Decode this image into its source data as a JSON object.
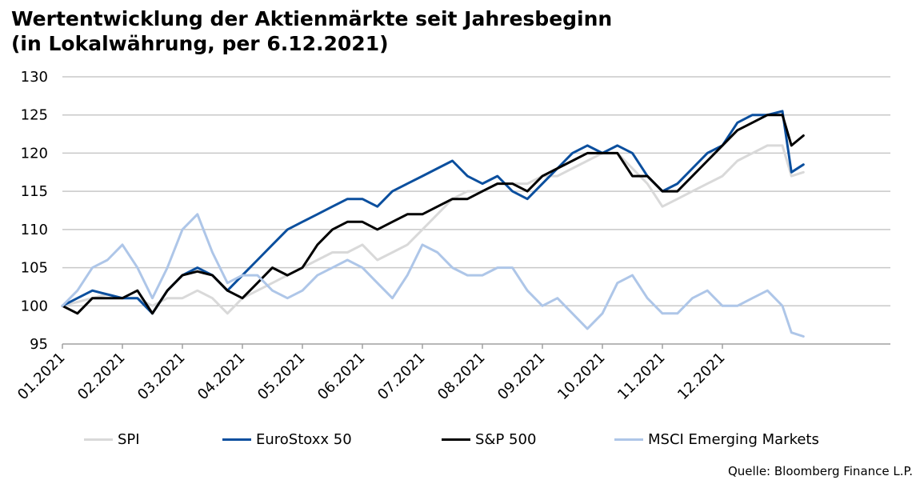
{
  "title_line1": "Wertentwicklung der Aktienmärkte seit Jahresbeginn",
  "title_line2": "(in Lokalwährung, per 6.12.2021)",
  "source": "Quelle: Bloomberg Finance L.P.",
  "chart_data": {
    "type": "line",
    "title": "Wertentwicklung der Aktienmärkte seit Jahresbeginn (in Lokalwährung, per 6.12.2021)",
    "xlabel": "",
    "ylabel": "",
    "ylim": [
      95,
      130
    ],
    "yticks": [
      95,
      100,
      105,
      110,
      115,
      120,
      125,
      130
    ],
    "xlim": [
      0,
      13.8
    ],
    "xtick_labels": [
      "01.2021",
      "02.2021",
      "03.2021",
      "04.2021",
      "05.2021",
      "06.2021",
      "07.2021",
      "08.2021",
      "09.2021",
      "10.2021",
      "11.2021",
      "12.2021"
    ],
    "grid": "horizontal",
    "legend_position": "bottom",
    "series": [
      {
        "name": "SPI",
        "color": "#d9d9d9",
        "x": [
          0,
          0.25,
          0.5,
          0.75,
          1,
          1.25,
          1.5,
          1.75,
          2,
          2.25,
          2.5,
          2.75,
          3,
          3.25,
          3.5,
          3.75,
          4,
          4.25,
          4.5,
          4.75,
          5,
          5.25,
          5.5,
          5.75,
          6,
          6.25,
          6.5,
          6.75,
          7,
          7.25,
          7.5,
          7.75,
          8,
          8.25,
          8.5,
          8.75,
          9,
          9.25,
          9.5,
          9.75,
          10,
          10.25,
          10.5,
          10.75,
          11,
          11.25,
          11.5,
          11.75,
          12,
          12.15,
          12.35
        ],
        "values": [
          100,
          100.5,
          101,
          101.5,
          101,
          101,
          100,
          101,
          101,
          102,
          101,
          99,
          101,
          102,
          103,
          104,
          105,
          106,
          107,
          107,
          108,
          106,
          107,
          108,
          110,
          112,
          114,
          115,
          115,
          116,
          116,
          116,
          117,
          117,
          118,
          119,
          120,
          120,
          118,
          116,
          113,
          114,
          115,
          116,
          117,
          119,
          120,
          121,
          121,
          117,
          117.5
        ]
      },
      {
        "name": "EuroStoxx 50",
        "color": "#0b4f9e",
        "x": [
          0,
          0.25,
          0.5,
          0.75,
          1,
          1.25,
          1.5,
          1.75,
          2,
          2.25,
          2.5,
          2.75,
          3,
          3.25,
          3.5,
          3.75,
          4,
          4.25,
          4.5,
          4.75,
          5,
          5.25,
          5.5,
          5.75,
          6,
          6.25,
          6.5,
          6.75,
          7,
          7.25,
          7.5,
          7.75,
          8,
          8.25,
          8.5,
          8.75,
          9,
          9.25,
          9.5,
          9.75,
          10,
          10.25,
          10.5,
          10.75,
          11,
          11.25,
          11.5,
          11.75,
          12,
          12.15,
          12.35
        ],
        "values": [
          100,
          101,
          102,
          101.5,
          101,
          101,
          99,
          102,
          104,
          105,
          104,
          102,
          104,
          106,
          108,
          110,
          111,
          112,
          113,
          114,
          114,
          113,
          115,
          116,
          117,
          118,
          119,
          117,
          116,
          117,
          115,
          114,
          116,
          118,
          120,
          121,
          120,
          121,
          120,
          117,
          115,
          116,
          118,
          120,
          121,
          124,
          125,
          125,
          125.5,
          117.5,
          118.5
        ]
      },
      {
        "name": "S&P 500",
        "color": "#000000",
        "x": [
          0,
          0.25,
          0.5,
          0.75,
          1,
          1.25,
          1.5,
          1.75,
          2,
          2.25,
          2.5,
          2.75,
          3,
          3.25,
          3.5,
          3.75,
          4,
          4.25,
          4.5,
          4.75,
          5,
          5.25,
          5.5,
          5.75,
          6,
          6.25,
          6.5,
          6.75,
          7,
          7.25,
          7.5,
          7.75,
          8,
          8.25,
          8.5,
          8.75,
          9,
          9.25,
          9.5,
          9.75,
          10,
          10.25,
          10.5,
          10.75,
          11,
          11.25,
          11.5,
          11.75,
          12,
          12.15,
          12.35
        ],
        "values": [
          100,
          99,
          101,
          101,
          101,
          102,
          99,
          102,
          104,
          104.5,
          104,
          102,
          101,
          103,
          105,
          104,
          105,
          108,
          110,
          111,
          111,
          110,
          111,
          112,
          112,
          113,
          114,
          114,
          115,
          116,
          116,
          115,
          117,
          118,
          119,
          120,
          120,
          120,
          117,
          117,
          115,
          115,
          117,
          119,
          121,
          123,
          124,
          125,
          125,
          121,
          122.3
        ]
      },
      {
        "name": "MSCI Emerging Markets",
        "color": "#aec6e8",
        "x": [
          0,
          0.25,
          0.5,
          0.75,
          1,
          1.25,
          1.5,
          1.75,
          2,
          2.25,
          2.5,
          2.75,
          3,
          3.25,
          3.5,
          3.75,
          4,
          4.25,
          4.5,
          4.75,
          5,
          5.25,
          5.5,
          5.75,
          6,
          6.25,
          6.5,
          6.75,
          7,
          7.25,
          7.5,
          7.75,
          8,
          8.25,
          8.5,
          8.75,
          9,
          9.25,
          9.5,
          9.75,
          10,
          10.25,
          10.5,
          10.75,
          11,
          11.25,
          11.5,
          11.75,
          12,
          12.15,
          12.35
        ],
        "values": [
          100,
          102,
          105,
          106,
          108,
          105,
          101,
          105,
          110,
          112,
          107,
          103,
          104,
          104,
          102,
          101,
          102,
          104,
          105,
          106,
          105,
          103,
          101,
          104,
          108,
          107,
          105,
          104,
          104,
          105,
          105,
          102,
          100,
          101,
          99,
          97,
          99,
          103,
          104,
          101,
          99,
          99,
          101,
          102,
          100,
          100,
          101,
          102,
          100,
          96.5,
          96
        ]
      }
    ]
  }
}
